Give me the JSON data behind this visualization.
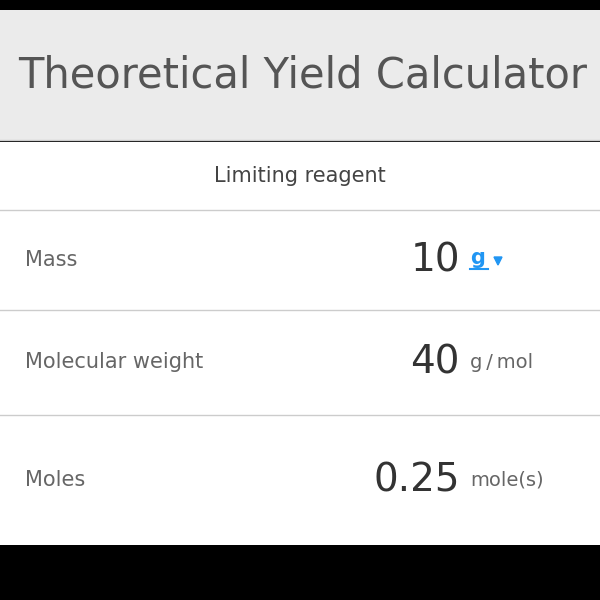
{
  "title": "Theoretical Yield Calculator",
  "title_color": "#555555",
  "title_bg_color": "#ebebeb",
  "content_bg_color": "#ffffff",
  "bottom_bg_color": "#000000",
  "section_header": "Limiting reagent",
  "section_header_color": "#444444",
  "rows": [
    {
      "label": "Mass",
      "value": "10",
      "unit": "g",
      "unit_color": "#2196F3",
      "has_dropdown": true,
      "label_color": "#666666",
      "value_color": "#333333",
      "unit_text_color": "#666666"
    },
    {
      "label": "Molecular weight",
      "value": "40",
      "unit": "g / mol",
      "unit_color": "#666666",
      "has_dropdown": false,
      "label_color": "#666666",
      "value_color": "#333333",
      "unit_text_color": "#666666"
    },
    {
      "label": "Moles",
      "value": "0.25",
      "unit": "mole(s)",
      "unit_color": "#666666",
      "has_dropdown": false,
      "label_color": "#666666",
      "value_color": "#333333",
      "unit_text_color": "#666666"
    }
  ],
  "divider_color": "#cccccc",
  "dropdown_arrow_color": "#2196F3",
  "figsize": [
    6.0,
    6.0
  ],
  "dpi": 100
}
